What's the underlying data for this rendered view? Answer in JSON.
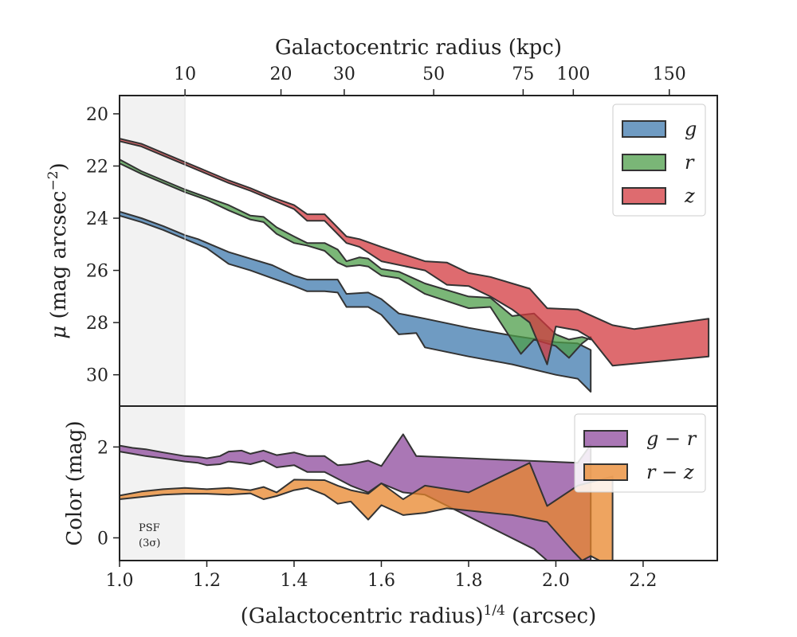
{
  "colors": {
    "g": "#3f79ad",
    "r": "#4e9e4a",
    "z": "#d33a3f",
    "g_minus_r": "#8e4a9c",
    "r_minus_z": "#e8852b",
    "edge": "#333333",
    "psf_shade": "#f2f2f2"
  },
  "chart_data": [
    {
      "id": "surface_brightness",
      "type": "area",
      "xlabel": "(Galactocentric radius)^1/4 (arcsec)",
      "xlabel_main": "(Galactocentric radius)",
      "xlabel_sup": "1/4",
      "xlabel_unit": " (arcsec)",
      "ylabel": "μ (mag arcsec⁻²)",
      "ylabel_mu": "μ",
      "ylabel_rest": " (mag arcsec",
      "ylabel_sup": "−2",
      "ylabel_end": ")",
      "top_xlabel": "Galactocentric radius (kpc)",
      "top_ticks_kpc": [
        "10",
        "20",
        "30",
        "50",
        "75",
        "100",
        "150"
      ],
      "top_ticks_x": [
        1.15,
        1.37,
        1.515,
        1.72,
        1.925,
        2.04,
        2.26
      ],
      "xlim": [
        1.0,
        2.37
      ],
      "ylim": [
        31.2,
        19.3
      ],
      "y_inverted": true,
      "yticks": [
        "20",
        "22",
        "24",
        "26",
        "28",
        "30"
      ],
      "ytick_values": [
        20,
        22,
        24,
        26,
        28,
        30
      ],
      "legend": [
        "g",
        "r",
        "z"
      ],
      "legend_position": "upper right",
      "psf_limit_x": 1.15,
      "series": [
        {
          "name": "g",
          "upper": [
            [
              1.0,
              23.75
            ],
            [
              1.05,
              24.0
            ],
            [
              1.1,
              24.3
            ],
            [
              1.15,
              24.65
            ],
            [
              1.18,
              24.8
            ],
            [
              1.25,
              25.3
            ],
            [
              1.3,
              25.55
            ],
            [
              1.35,
              25.8
            ],
            [
              1.4,
              26.2
            ],
            [
              1.43,
              26.35
            ],
            [
              1.47,
              26.35
            ],
            [
              1.5,
              26.35
            ],
            [
              1.52,
              26.9
            ],
            [
              1.57,
              26.85
            ],
            [
              1.6,
              27.1
            ],
            [
              1.64,
              27.65
            ],
            [
              1.7,
              27.85
            ],
            [
              1.8,
              28.2
            ],
            [
              1.9,
              28.5
            ],
            [
              2.0,
              28.75
            ],
            [
              2.05,
              28.8
            ],
            [
              2.08,
              29.05
            ]
          ],
          "lower": [
            [
              2.08,
              30.65
            ],
            [
              2.05,
              30.15
            ],
            [
              2.0,
              30.0
            ],
            [
              1.9,
              29.6
            ],
            [
              1.8,
              29.3
            ],
            [
              1.7,
              28.95
            ],
            [
              1.68,
              28.4
            ],
            [
              1.64,
              28.45
            ],
            [
              1.6,
              27.7
            ],
            [
              1.57,
              27.4
            ],
            [
              1.52,
              27.4
            ],
            [
              1.5,
              26.85
            ],
            [
              1.47,
              26.8
            ],
            [
              1.43,
              26.8
            ],
            [
              1.4,
              26.6
            ],
            [
              1.35,
              26.3
            ],
            [
              1.3,
              26.0
            ],
            [
              1.25,
              25.75
            ],
            [
              1.2,
              25.15
            ],
            [
              1.15,
              24.8
            ],
            [
              1.1,
              24.45
            ],
            [
              1.05,
              24.15
            ],
            [
              1.0,
              23.9
            ]
          ]
        },
        {
          "name": "r",
          "upper": [
            [
              1.0,
              21.75
            ],
            [
              1.05,
              22.2
            ],
            [
              1.1,
              22.55
            ],
            [
              1.15,
              22.9
            ],
            [
              1.2,
              23.2
            ],
            [
              1.25,
              23.5
            ],
            [
              1.3,
              23.9
            ],
            [
              1.33,
              23.95
            ],
            [
              1.36,
              24.35
            ],
            [
              1.4,
              24.7
            ],
            [
              1.43,
              24.95
            ],
            [
              1.47,
              24.95
            ],
            [
              1.5,
              25.2
            ],
            [
              1.52,
              25.65
            ],
            [
              1.55,
              25.5
            ],
            [
              1.57,
              25.55
            ],
            [
              1.6,
              25.95
            ],
            [
              1.64,
              26.05
            ],
            [
              1.7,
              26.5
            ],
            [
              1.8,
              27.0
            ],
            [
              1.85,
              27.05
            ],
            [
              1.9,
              27.75
            ],
            [
              1.95,
              27.65
            ],
            [
              2.0,
              28.45
            ],
            [
              2.03,
              28.65
            ],
            [
              2.06,
              28.55
            ],
            [
              2.08,
              28.65
            ]
          ],
          "lower": [
            [
              2.08,
              28.55
            ],
            [
              2.06,
              28.8
            ],
            [
              2.03,
              29.35
            ],
            [
              2.0,
              28.9
            ],
            [
              1.95,
              28.65
            ],
            [
              1.92,
              29.2
            ],
            [
              1.85,
              27.4
            ],
            [
              1.8,
              27.45
            ],
            [
              1.7,
              26.9
            ],
            [
              1.64,
              26.3
            ],
            [
              1.6,
              26.2
            ],
            [
              1.57,
              25.85
            ],
            [
              1.55,
              25.8
            ],
            [
              1.52,
              25.85
            ],
            [
              1.5,
              25.7
            ],
            [
              1.47,
              25.25
            ],
            [
              1.43,
              25.05
            ],
            [
              1.4,
              24.95
            ],
            [
              1.36,
              24.6
            ],
            [
              1.33,
              24.15
            ],
            [
              1.3,
              24.05
            ],
            [
              1.25,
              23.7
            ],
            [
              1.2,
              23.3
            ],
            [
              1.15,
              23.0
            ],
            [
              1.1,
              22.65
            ],
            [
              1.05,
              22.3
            ],
            [
              1.0,
              21.9
            ]
          ]
        },
        {
          "name": "z",
          "upper": [
            [
              1.0,
              20.95
            ],
            [
              1.05,
              21.15
            ],
            [
              1.1,
              21.5
            ],
            [
              1.15,
              21.85
            ],
            [
              1.2,
              22.2
            ],
            [
              1.25,
              22.55
            ],
            [
              1.3,
              22.85
            ],
            [
              1.35,
              23.2
            ],
            [
              1.4,
              23.5
            ],
            [
              1.43,
              23.85
            ],
            [
              1.47,
              23.85
            ],
            [
              1.52,
              24.7
            ],
            [
              1.55,
              24.8
            ],
            [
              1.6,
              25.1
            ],
            [
              1.7,
              25.65
            ],
            [
              1.75,
              25.7
            ],
            [
              1.8,
              26.1
            ],
            [
              1.85,
              26.25
            ],
            [
              1.94,
              26.7
            ],
            [
              1.98,
              27.45
            ],
            [
              2.05,
              27.5
            ],
            [
              2.13,
              28.1
            ],
            [
              2.18,
              28.25
            ],
            [
              2.35,
              27.85
            ]
          ],
          "lower": [
            [
              2.35,
              29.3
            ],
            [
              2.13,
              29.65
            ],
            [
              2.08,
              28.6
            ],
            [
              2.05,
              28.3
            ],
            [
              2.0,
              28.15
            ],
            [
              1.98,
              29.6
            ],
            [
              1.94,
              28.0
            ],
            [
              1.9,
              27.5
            ],
            [
              1.85,
              27.0
            ],
            [
              1.8,
              26.6
            ],
            [
              1.75,
              26.55
            ],
            [
              1.7,
              26.0
            ],
            [
              1.6,
              25.65
            ],
            [
              1.55,
              25.1
            ],
            [
              1.52,
              24.95
            ],
            [
              1.47,
              24.1
            ],
            [
              1.43,
              24.1
            ],
            [
              1.4,
              23.65
            ],
            [
              1.35,
              23.3
            ],
            [
              1.3,
              22.95
            ],
            [
              1.25,
              22.65
            ],
            [
              1.2,
              22.3
            ],
            [
              1.15,
              21.95
            ],
            [
              1.1,
              21.6
            ],
            [
              1.05,
              21.25
            ],
            [
              1.0,
              21.05
            ]
          ]
        }
      ]
    },
    {
      "id": "color_profile",
      "type": "area",
      "xlabel": "(Galactocentric radius)^1/4 (arcsec)",
      "ylabel": "Color (mag)",
      "xlim": [
        1.0,
        2.37
      ],
      "ylim": [
        -0.5,
        2.9
      ],
      "xticks": [
        "1.0",
        "1.2",
        "1.4",
        "1.6",
        "1.8",
        "2.0",
        "2.2"
      ],
      "xtick_values": [
        1.0,
        1.2,
        1.4,
        1.6,
        1.8,
        2.0,
        2.2
      ],
      "yticks": [
        "0",
        "2"
      ],
      "ytick_values": [
        0,
        2
      ],
      "legend": [
        "g − r",
        "r − z"
      ],
      "legend_position": "upper right",
      "psf_label_line1": "PSF",
      "psf_label_line2": "(3σ)",
      "psf_limit_x": 1.15,
      "series": [
        {
          "name": "g − r",
          "upper": [
            [
              1.0,
              2.03
            ],
            [
              1.03,
              1.98
            ],
            [
              1.06,
              1.95
            ],
            [
              1.1,
              1.88
            ],
            [
              1.15,
              1.8
            ],
            [
              1.18,
              1.78
            ],
            [
              1.2,
              1.75
            ],
            [
              1.23,
              1.8
            ],
            [
              1.25,
              1.9
            ],
            [
              1.28,
              1.92
            ],
            [
              1.3,
              1.85
            ],
            [
              1.33,
              1.92
            ],
            [
              1.36,
              1.82
            ],
            [
              1.4,
              1.88
            ],
            [
              1.43,
              1.8
            ],
            [
              1.47,
              1.8
            ],
            [
              1.5,
              1.6
            ],
            [
              1.53,
              1.62
            ],
            [
              1.57,
              1.7
            ],
            [
              1.6,
              1.58
            ],
            [
              1.65,
              2.28
            ],
            [
              1.68,
              1.8
            ],
            [
              2.05,
              1.65
            ],
            [
              2.08,
              2.05
            ]
          ],
          "lower": [
            [
              2.08,
              -0.5
            ],
            [
              2.05,
              -0.5
            ],
            [
              2.0,
              -0.5
            ],
            [
              1.98,
              -0.5
            ],
            [
              1.95,
              -0.25
            ],
            [
              1.7,
              0.95
            ],
            [
              1.65,
              1.0
            ],
            [
              1.6,
              1.2
            ],
            [
              1.57,
              1.0
            ],
            [
              1.53,
              1.15
            ],
            [
              1.5,
              1.3
            ],
            [
              1.47,
              1.45
            ],
            [
              1.43,
              1.45
            ],
            [
              1.4,
              1.6
            ],
            [
              1.36,
              1.55
            ],
            [
              1.33,
              1.7
            ],
            [
              1.3,
              1.62
            ],
            [
              1.28,
              1.65
            ],
            [
              1.25,
              1.68
            ],
            [
              1.23,
              1.62
            ],
            [
              1.2,
              1.6
            ],
            [
              1.18,
              1.65
            ],
            [
              1.15,
              1.68
            ],
            [
              1.1,
              1.75
            ],
            [
              1.06,
              1.8
            ],
            [
              1.03,
              1.85
            ],
            [
              1.0,
              1.9
            ]
          ]
        },
        {
          "name": "r − z",
          "upper": [
            [
              1.0,
              0.93
            ],
            [
              1.05,
              1.02
            ],
            [
              1.1,
              1.07
            ],
            [
              1.15,
              1.1
            ],
            [
              1.2,
              1.07
            ],
            [
              1.25,
              1.1
            ],
            [
              1.3,
              1.05
            ],
            [
              1.33,
              1.12
            ],
            [
              1.36,
              1.0
            ],
            [
              1.4,
              1.28
            ],
            [
              1.47,
              1.27
            ],
            [
              1.5,
              1.15
            ],
            [
              1.53,
              1.05
            ],
            [
              1.57,
              0.97
            ],
            [
              1.6,
              1.2
            ],
            [
              1.65,
              0.85
            ],
            [
              1.7,
              1.15
            ],
            [
              1.8,
              1.0
            ],
            [
              1.94,
              1.65
            ],
            [
              1.98,
              0.7
            ],
            [
              2.05,
              1.15
            ],
            [
              2.13,
              1.35
            ]
          ],
          "lower": [
            [
              2.13,
              -0.5
            ],
            [
              2.1,
              -0.5
            ],
            [
              2.08,
              -0.4
            ],
            [
              2.06,
              -0.5
            ],
            [
              2.04,
              -0.3
            ],
            [
              1.98,
              0.35
            ],
            [
              1.9,
              0.5
            ],
            [
              1.75,
              0.65
            ],
            [
              1.7,
              0.55
            ],
            [
              1.65,
              0.5
            ],
            [
              1.6,
              0.72
            ],
            [
              1.57,
              0.4
            ],
            [
              1.53,
              0.8
            ],
            [
              1.5,
              0.75
            ],
            [
              1.47,
              0.95
            ],
            [
              1.43,
              1.1
            ],
            [
              1.4,
              1.05
            ],
            [
              1.36,
              0.92
            ],
            [
              1.33,
              0.85
            ],
            [
              1.3,
              0.98
            ],
            [
              1.25,
              0.95
            ],
            [
              1.2,
              0.97
            ],
            [
              1.15,
              0.97
            ],
            [
              1.1,
              0.95
            ],
            [
              1.05,
              0.9
            ],
            [
              1.0,
              0.85
            ]
          ]
        }
      ]
    }
  ]
}
